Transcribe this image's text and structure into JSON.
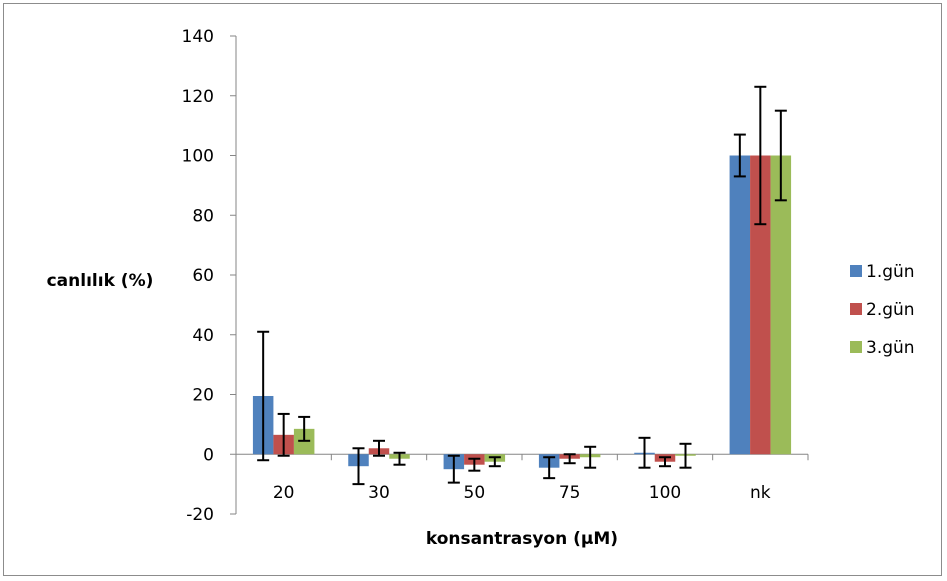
{
  "chart_data": {
    "type": "bar",
    "title": "",
    "xlabel": "konsantrasyon (µM)",
    "ylabel": "canlılık (%)",
    "ylim": [
      -20,
      140
    ],
    "yticks": [
      -20,
      0,
      20,
      40,
      60,
      80,
      100,
      120,
      140
    ],
    "categories": [
      "20",
      "30",
      "50",
      "75",
      "100",
      "nk"
    ],
    "grid": false,
    "legend_position": "right",
    "series": [
      {
        "name": "1.gün",
        "color": "#4F81BD",
        "values": [
          19.5,
          -4,
          -5,
          -4.5,
          0.5,
          100
        ],
        "errors": [
          21.5,
          6,
          4.5,
          3.5,
          5,
          7
        ]
      },
      {
        "name": "2.gün",
        "color": "#C0504D",
        "values": [
          6.5,
          2,
          -3.5,
          -1.5,
          -2.5,
          100
        ],
        "errors": [
          7,
          2.5,
          2,
          1.5,
          1.5,
          23
        ]
      },
      {
        "name": "3.gün",
        "color": "#9BBB59",
        "values": [
          8.5,
          -1.5,
          -2.5,
          -1,
          -0.5,
          100
        ],
        "errors": [
          4,
          2,
          1.5,
          3.5,
          4,
          15
        ]
      }
    ]
  }
}
